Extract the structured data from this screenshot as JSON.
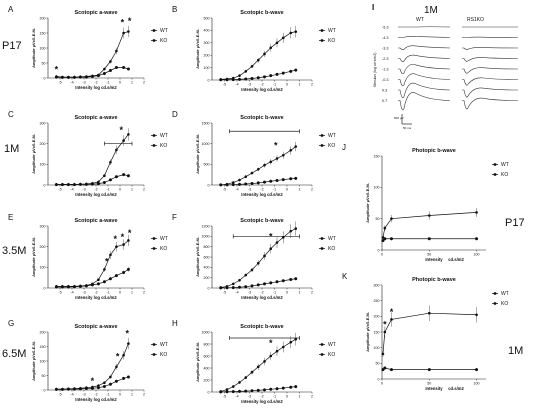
{
  "figure": {
    "row_labels": [
      "P17",
      "1M",
      "3.5M",
      "6.5M"
    ],
    "side_labels": [
      "P17",
      "1M"
    ],
    "erg_panel": {
      "letter": "I",
      "age": "1M",
      "col_labels": [
        "WT",
        "RS1KO"
      ],
      "intensities": [
        "-5.3",
        "-4.3",
        "-3.3",
        "-2.3",
        "-1.3",
        "-0.3",
        "0.3",
        "0.7"
      ],
      "ylabel": "Stimulus (log cd·s/m2)",
      "scale_voltage": "500 µV",
      "scale_time": "50 ms"
    }
  },
  "chart_data": [
    {
      "id": "A",
      "type": "line",
      "title": "Scotopic a-wave",
      "xlabel": "Intensity log cd.s/m2",
      "ylabel": "Amplitude µV±S.E.M.",
      "xlim": [
        -6,
        2
      ],
      "ylim": [
        0,
        200
      ],
      "xticks": [
        -5,
        -4,
        -3,
        -2,
        -1,
        0,
        1,
        2
      ],
      "yticks": [
        0,
        50,
        100,
        150,
        200
      ],
      "x": [
        -5.3,
        -4.8,
        -4.3,
        -3.8,
        -3.3,
        -2.8,
        -2.3,
        -1.8,
        -1.3,
        -0.8,
        -0.3,
        0.3,
        0.7
      ],
      "series": [
        {
          "name": "WT",
          "values": [
            5,
            3,
            3,
            3,
            4,
            5,
            7,
            10,
            30,
            55,
            90,
            150,
            155
          ]
        },
        {
          "name": "KO",
          "values": [
            3,
            2,
            2,
            2,
            3,
            3,
            5,
            8,
            15,
            25,
            35,
            35,
            30
          ]
        }
      ],
      "stars": [
        "*",
        "*",
        "*"
      ]
    },
    {
      "id": "B",
      "type": "line",
      "title": "Scotopic b-wave",
      "xlabel": "Intensity log cd.s/m2",
      "ylabel": "Amplitude µV±S.E.M.",
      "xlim": [
        -6,
        2
      ],
      "ylim": [
        0,
        500
      ],
      "xticks": [
        -5,
        -4,
        -3,
        -2,
        -1,
        0,
        1,
        2
      ],
      "yticks": [
        0,
        100,
        200,
        300,
        400,
        500
      ],
      "x": [
        -5.3,
        -4.8,
        -4.3,
        -3.8,
        -3.3,
        -2.8,
        -2.3,
        -1.8,
        -1.3,
        -0.8,
        -0.3,
        0.3,
        0.7
      ],
      "series": [
        {
          "name": "WT",
          "values": [
            5,
            8,
            15,
            35,
            70,
            110,
            160,
            210,
            260,
            300,
            340,
            380,
            390
          ]
        },
        {
          "name": "KO",
          "values": [
            2,
            2,
            3,
            5,
            8,
            12,
            18,
            25,
            35,
            45,
            55,
            70,
            80
          ]
        }
      ],
      "stars": []
    },
    {
      "id": "C",
      "type": "line",
      "title": "Scotopic a-wave",
      "xlabel": "Intensity log cd.s/m2",
      "ylabel": "Amplitude µV±S.E.M.",
      "xlim": [
        -6,
        2
      ],
      "ylim": [
        0,
        300
      ],
      "xticks": [
        -5,
        -4,
        -3,
        -2,
        -1,
        0,
        1,
        2
      ],
      "yticks": [
        0,
        100,
        200,
        300
      ],
      "x": [
        -5.3,
        -4.8,
        -4.3,
        -3.8,
        -3.3,
        -2.8,
        -2.3,
        -1.8,
        -1.3,
        -0.8,
        -0.3,
        0.3,
        0.7
      ],
      "series": [
        {
          "name": "WT",
          "values": [
            3,
            3,
            3,
            3,
            4,
            5,
            8,
            15,
            45,
            110,
            170,
            215,
            245
          ]
        },
        {
          "name": "KO",
          "values": [
            2,
            2,
            2,
            2,
            3,
            3,
            4,
            6,
            12,
            25,
            40,
            50,
            45
          ]
        }
      ],
      "stars": [
        "*"
      ]
    },
    {
      "id": "D",
      "type": "line",
      "title": "Scotopic b-wave",
      "xlabel": "Intensity log cd.s/m2",
      "ylabel": "Amplitude µV±S.E.M.",
      "xlim": [
        -6,
        2
      ],
      "ylim": [
        0,
        1500
      ],
      "xticks": [
        -5,
        -4,
        -3,
        -2,
        -1,
        0,
        1,
        2
      ],
      "yticks": [
        0,
        500,
        1000,
        1500
      ],
      "x": [
        -5.3,
        -4.8,
        -4.3,
        -3.8,
        -3.3,
        -2.8,
        -2.3,
        -1.8,
        -1.3,
        -0.8,
        -0.3,
        0.3,
        0.7
      ],
      "series": [
        {
          "name": "WT",
          "values": [
            5,
            20,
            60,
            120,
            200,
            290,
            380,
            480,
            560,
            640,
            720,
            840,
            930
          ]
        },
        {
          "name": "KO",
          "values": [
            2,
            4,
            8,
            15,
            25,
            35,
            50,
            70,
            90,
            110,
            130,
            150,
            160
          ]
        }
      ],
      "stars": [
        "*"
      ]
    },
    {
      "id": "E",
      "type": "line",
      "title": "Scotopic a-wave",
      "xlabel": "Intensity log cd.s/m2",
      "ylabel": "Amplitude µV±S.E.M.",
      "xlim": [
        -6,
        2
      ],
      "ylim": [
        0,
        300
      ],
      "xticks": [
        -5,
        -4,
        -3,
        -2,
        -1,
        0,
        1,
        2
      ],
      "yticks": [
        0,
        100,
        200,
        300
      ],
      "x": [
        -5.3,
        -4.8,
        -4.3,
        -3.8,
        -3.3,
        -2.8,
        -2.3,
        -1.8,
        -1.3,
        -0.8,
        -0.3,
        0.3,
        0.7
      ],
      "series": [
        {
          "name": "WT",
          "values": [
            8,
            8,
            8,
            8,
            10,
            12,
            20,
            40,
            90,
            160,
            200,
            210,
            230
          ]
        },
        {
          "name": "KO",
          "values": [
            5,
            5,
            5,
            6,
            8,
            10,
            15,
            20,
            30,
            45,
            60,
            75,
            90
          ]
        }
      ],
      "stars": [
        "*",
        "*",
        "*",
        "*"
      ]
    },
    {
      "id": "F",
      "type": "line",
      "title": "Scotopic b-wave",
      "xlabel": "Intensity log cd.s/m2",
      "ylabel": "Amplitude µV±S.E.M.",
      "xlim": [
        -6,
        2
      ],
      "ylim": [
        0,
        1200
      ],
      "xticks": [
        -5,
        -4,
        -3,
        -2,
        -1,
        0,
        1,
        2
      ],
      "yticks": [
        0,
        200,
        400,
        600,
        800,
        1000,
        1200
      ],
      "x": [
        -5.3,
        -4.8,
        -4.3,
        -3.8,
        -3.3,
        -2.8,
        -2.3,
        -1.8,
        -1.3,
        -0.8,
        -0.3,
        0.3,
        0.7
      ],
      "series": [
        {
          "name": "WT",
          "values": [
            10,
            30,
            80,
            150,
            250,
            350,
            480,
            620,
            760,
            880,
            980,
            1100,
            1150
          ]
        },
        {
          "name": "KO",
          "values": [
            2,
            4,
            8,
            15,
            25,
            40,
            60,
            80,
            100,
            120,
            140,
            165,
            180
          ]
        }
      ],
      "stars": [
        "*"
      ]
    },
    {
      "id": "G",
      "type": "line",
      "title": "Scotopic a-wave",
      "xlabel": "Intensity log cd.s/m2",
      "ylabel": "Amplitude µV±S.E.M.",
      "xlim": [
        -6,
        2
      ],
      "ylim": [
        0,
        200
      ],
      "xticks": [
        -5,
        -4,
        -3,
        -2,
        -1,
        0,
        1,
        2
      ],
      "yticks": [
        0,
        50,
        100,
        150,
        200
      ],
      "x": [
        -5.3,
        -4.8,
        -4.3,
        -3.8,
        -3.3,
        -2.8,
        -2.3,
        -1.8,
        -1.3,
        -0.8,
        -0.3,
        0.3,
        0.7
      ],
      "series": [
        {
          "name": "WT",
          "values": [
            3,
            3,
            4,
            5,
            6,
            8,
            10,
            15,
            25,
            45,
            80,
            120,
            160
          ]
        },
        {
          "name": "KO",
          "values": [
            2,
            2,
            3,
            3,
            4,
            5,
            6,
            8,
            12,
            20,
            30,
            40,
            45
          ]
        }
      ],
      "stars": [
        "*",
        "*",
        "*"
      ]
    },
    {
      "id": "H",
      "type": "line",
      "title": "Scotopic b-wave",
      "xlabel": "Intensity log cd.s/m2",
      "ylabel": "Amplitude µV±S.E.M.",
      "xlim": [
        -6,
        2
      ],
      "ylim": [
        0,
        1000
      ],
      "xticks": [
        -5,
        -4,
        -3,
        -2,
        -1,
        0,
        1,
        2
      ],
      "yticks": [
        0,
        200,
        400,
        600,
        800,
        1000
      ],
      "x": [
        -5.3,
        -4.8,
        -4.3,
        -3.8,
        -3.3,
        -2.8,
        -2.3,
        -1.8,
        -1.3,
        -0.8,
        -0.3,
        0.3,
        0.7
      ],
      "series": [
        {
          "name": "WT",
          "values": [
            10,
            40,
            90,
            160,
            240,
            330,
            420,
            510,
            600,
            680,
            750,
            830,
            880
          ]
        },
        {
          "name": "KO",
          "values": [
            2,
            4,
            6,
            10,
            15,
            20,
            28,
            36,
            45,
            55,
            65,
            80,
            90
          ]
        }
      ],
      "stars": [
        "*"
      ]
    },
    {
      "id": "J",
      "type": "line",
      "title": "Photopic b-wave",
      "xlabel": "Intensity",
      "xunit": "cd.s/m2",
      "ylabel": "Amplitude µV±S.E.M.",
      "xlim": [
        0,
        110
      ],
      "ylim": [
        0,
        150
      ],
      "xticks": [
        0,
        50,
        100
      ],
      "yticks": [
        0,
        50,
        100,
        150
      ],
      "x": [
        1,
        3,
        10,
        50,
        100
      ],
      "series": [
        {
          "name": "WT",
          "values": [
            20,
            35,
            50,
            55,
            60
          ]
        },
        {
          "name": "KO",
          "values": [
            15,
            18,
            18,
            18,
            18
          ]
        }
      ],
      "stars": []
    },
    {
      "id": "K",
      "type": "line",
      "title": "Photopic b-wave",
      "xlabel": "Intensity",
      "xunit": "cd.s/m2",
      "ylabel": "Amplitude µV±S.E.M.",
      "xlim": [
        0,
        110
      ],
      "ylim": [
        0,
        300
      ],
      "xticks": [
        0,
        50,
        100
      ],
      "yticks": [
        0,
        50,
        100,
        150,
        200,
        250,
        300
      ],
      "x": [
        1,
        3,
        10,
        50,
        100
      ],
      "series": [
        {
          "name": "WT",
          "values": [
            80,
            150,
            190,
            210,
            205
          ]
        },
        {
          "name": "KO",
          "values": [
            30,
            35,
            30,
            30,
            30
          ]
        }
      ],
      "stars": [
        "*",
        "*"
      ]
    }
  ]
}
